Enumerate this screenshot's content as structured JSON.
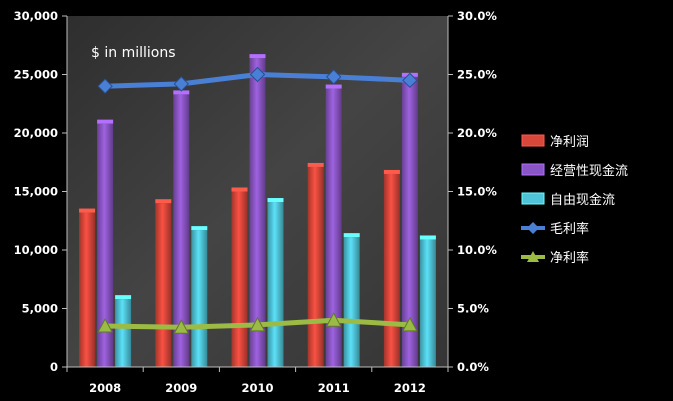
{
  "chart_data": {
    "type": "bar",
    "categories": [
      "2008",
      "2009",
      "2010",
      "2011",
      "2012"
    ],
    "series": [
      {
        "name": "净利润",
        "kind": "bar",
        "axis": "left",
        "color": "#d9463a",
        "values": [
          13200,
          14000,
          15000,
          17100,
          16500
        ]
      },
      {
        "name": "经营性现金流",
        "kind": "bar",
        "axis": "left",
        "color": "#8a55c4",
        "values": [
          20800,
          23300,
          26400,
          23800,
          24800
        ]
      },
      {
        "name": "自由现金流",
        "kind": "bar",
        "axis": "left",
        "color": "#4fc4d8",
        "values": [
          5800,
          11700,
          14100,
          11100,
          10900
        ]
      },
      {
        "name": "毛利率",
        "kind": "line",
        "axis": "right",
        "marker": "diamond",
        "color": "#4a7fd6",
        "values": [
          24.0,
          24.2,
          25.0,
          24.8,
          24.5
        ]
      },
      {
        "name": "净利率",
        "kind": "line",
        "axis": "right",
        "marker": "triangle",
        "color": "#9bbb45",
        "values": [
          3.5,
          3.4,
          3.6,
          4.0,
          3.6
        ]
      }
    ],
    "annotation": "$ in millions",
    "y_left": {
      "min": 0,
      "max": 30000,
      "step": 5000,
      "ticks": [
        "0",
        "5,000",
        "10,000",
        "15,000",
        "20,000",
        "25,000",
        "30,000"
      ]
    },
    "y_right": {
      "min": 0,
      "max": 30,
      "step": 5,
      "ticks": [
        "0.0%",
        "5.0%",
        "10.0%",
        "15.0%",
        "20.0%",
        "25.0%",
        "30.0%"
      ]
    },
    "grid": false,
    "legend_position": "right",
    "plot_background": "#3c3c3c",
    "background": "#000000"
  }
}
